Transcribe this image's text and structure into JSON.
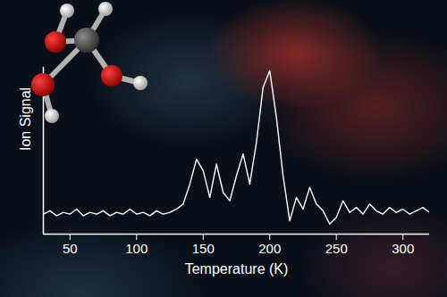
{
  "chart_data": {
    "type": "line",
    "xlabel": "Temperature (K)",
    "ylabel": "Ion Signal",
    "x": [
      30,
      35,
      40,
      45,
      50,
      55,
      60,
      65,
      70,
      75,
      80,
      85,
      90,
      95,
      100,
      105,
      110,
      115,
      120,
      125,
      130,
      135,
      140,
      145,
      150,
      155,
      160,
      165,
      170,
      175,
      180,
      185,
      190,
      195,
      200,
      205,
      210,
      215,
      220,
      225,
      230,
      235,
      240,
      245,
      250,
      255,
      260,
      265,
      270,
      275,
      280,
      285,
      290,
      295,
      300,
      305,
      310,
      315,
      320
    ],
    "values": [
      12,
      14,
      11,
      13,
      12,
      15,
      11,
      13,
      12,
      14,
      11,
      13,
      12,
      15,
      12,
      13,
      11,
      14,
      12,
      13,
      15,
      18,
      30,
      45,
      38,
      22,
      42,
      25,
      20,
      35,
      48,
      30,
      55,
      88,
      98,
      70,
      35,
      8,
      22,
      15,
      28,
      18,
      14,
      6,
      10,
      20,
      13,
      16,
      12,
      18,
      14,
      12,
      16,
      13,
      15,
      12,
      14,
      16,
      13
    ],
    "color": "#ffffff",
    "xlim": [
      30,
      320
    ],
    "xticks": [
      50,
      100,
      150,
      200,
      250,
      300
    ],
    "ylim": [
      0,
      100
    ],
    "tick_labels": "x"
  }
}
